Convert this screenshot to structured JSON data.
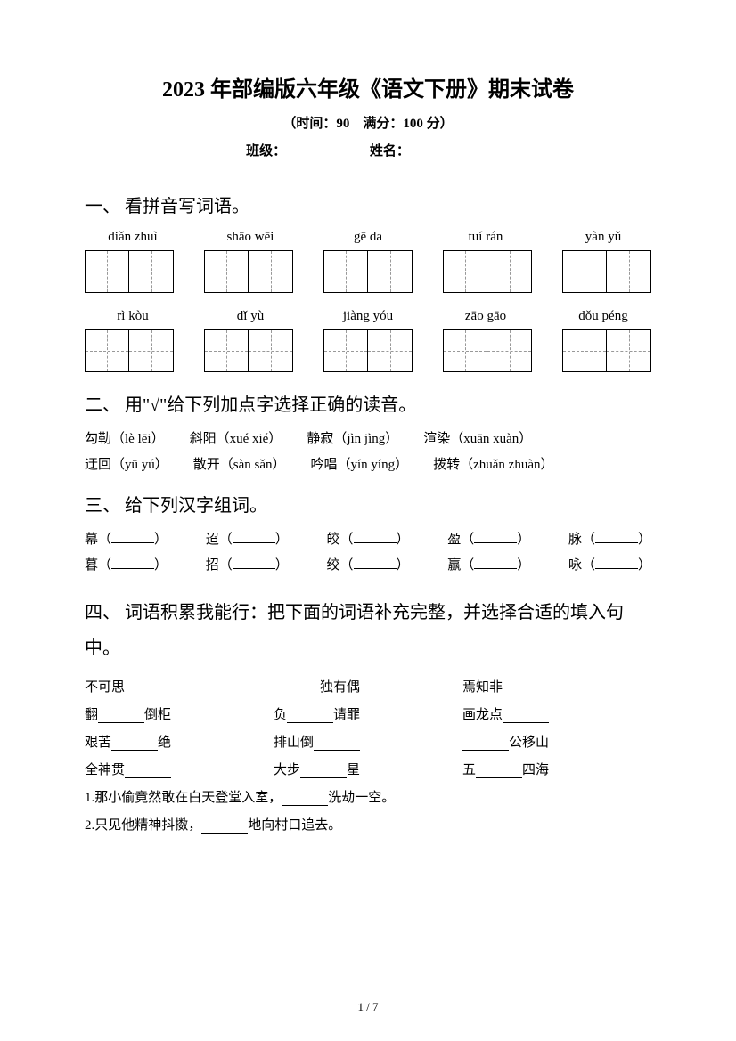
{
  "title": "2023 年部编版六年级《语文下册》期末试卷",
  "subtitle": "（时间：90　满分：100 分）",
  "info": {
    "class_label": "班级：",
    "name_label": "姓名："
  },
  "q1": {
    "heading": "一、 看拼音写词语。",
    "row1": [
      "diǎn zhuì",
      "shāo wēi",
      "gē da",
      "tuí rán",
      "yàn yǔ"
    ],
    "row2": [
      "rì kòu",
      "dǐ yù",
      "jiàng yóu",
      "zāo gāo",
      "dǒu péng"
    ]
  },
  "q2": {
    "heading": "二、 用\"√\"给下列加点字选择正确的读音。",
    "line1": [
      "勾勒（lè lēi）",
      "斜阳（xué xié）",
      "静寂（jìn jìng）",
      "渲染（xuān xuàn）"
    ],
    "line2": [
      "迂回（yū yú）",
      "散开（sàn sǎn）",
      "吟唱（yín yíng）",
      "拨转（zhuǎn zhuàn）"
    ]
  },
  "q3": {
    "heading": "三、 给下列汉字组词。",
    "line1": [
      "幕",
      "迢",
      "皎",
      "盈",
      "脉"
    ],
    "line2": [
      "暮",
      "招",
      "绞",
      "赢",
      "咏"
    ]
  },
  "q4": {
    "heading": "四、 词语积累我能行：把下面的词语补充完整，并选择合适的填入句中。",
    "rows": [
      [
        {
          "pre": "不可思",
          "post": ""
        },
        {
          "pre": "",
          "post": "独有偶"
        },
        {
          "pre": "焉知非",
          "post": ""
        }
      ],
      [
        {
          "pre": "翻",
          "post": "倒柜"
        },
        {
          "pre": "负",
          "post": "请罪"
        },
        {
          "pre": "画龙点",
          "post": ""
        }
      ],
      [
        {
          "pre": "艰苦",
          "post": "绝"
        },
        {
          "pre": "排山倒",
          "post": ""
        },
        {
          "pre": "",
          "post": "公移山"
        }
      ],
      [
        {
          "pre": "全神贯",
          "post": ""
        },
        {
          "pre": "大步",
          "post": "星"
        },
        {
          "pre": "五",
          "post": "四海"
        }
      ]
    ],
    "s1": {
      "num": "1.",
      "pre": "那小偷竟然敢在白天登堂入室，",
      "post": "洗劫一空。"
    },
    "s2": {
      "num": "2.",
      "pre": "只见他精神抖擞，",
      "post": "地向村口追去。"
    }
  },
  "page": "1 / 7"
}
